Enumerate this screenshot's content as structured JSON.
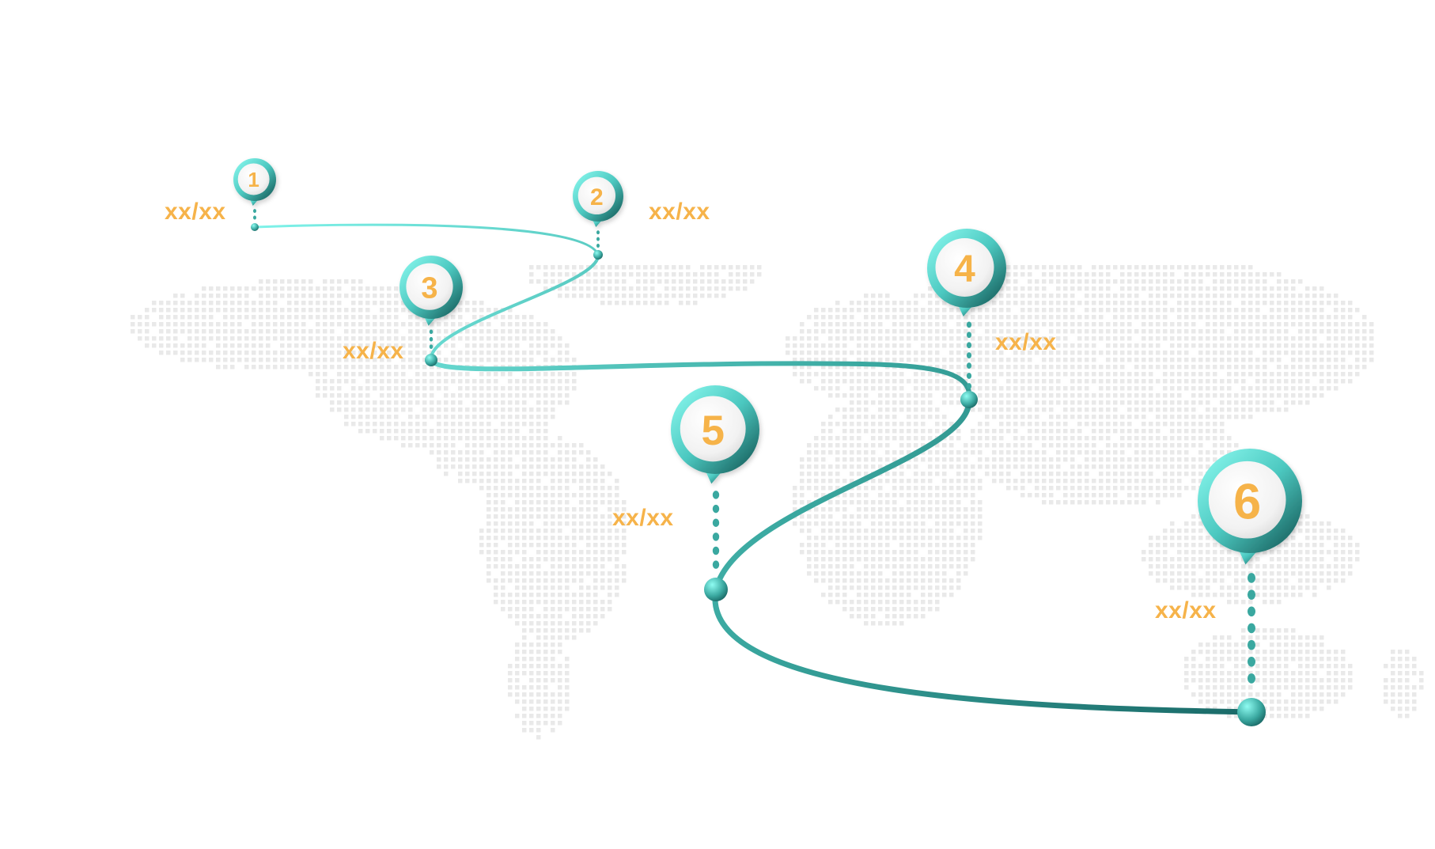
{
  "colors": {
    "accent_start": "#7ff3ea",
    "accent_end": "#1a6a68",
    "label": "#f6b34a",
    "map_dot": "#e9e9e9"
  },
  "background": {
    "type": "dotted world map",
    "dot_color": "#e9e9e9"
  },
  "milestones": [
    {
      "number": "1",
      "label": "xx/xx"
    },
    {
      "number": "2",
      "label": "xx/xx"
    },
    {
      "number": "3",
      "label": "xx/xx"
    },
    {
      "number": "4",
      "label": "xx/xx"
    },
    {
      "number": "5",
      "label": "xx/xx"
    },
    {
      "number": "6",
      "label": "xx/xx"
    }
  ]
}
